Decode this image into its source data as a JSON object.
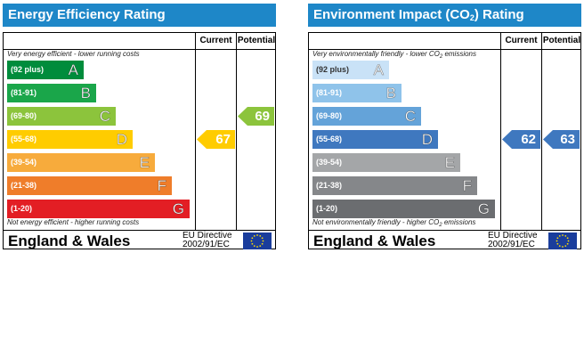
{
  "chart_data": [
    {
      "type": "bar",
      "title": "Energy Efficiency Rating",
      "columns": [
        "Current",
        "Potential"
      ],
      "top_note": "Very energy efficient - lower running costs",
      "bottom_note": "Not energy efficient - higher running costs",
      "bands": [
        {
          "letter": "A",
          "range": "(92 plus)",
          "color": "#008c3c"
        },
        {
          "letter": "B",
          "range": "(81-91)",
          "color": "#1aa64a"
        },
        {
          "letter": "C",
          "range": "(69-80)",
          "color": "#8cc43c"
        },
        {
          "letter": "D",
          "range": "(55-68)",
          "color": "#ffcc00"
        },
        {
          "letter": "E",
          "range": "(39-54)",
          "color": "#f7ab3c"
        },
        {
          "letter": "F",
          "range": "(21-38)",
          "color": "#ef7d2a"
        },
        {
          "letter": "G",
          "range": "(1-20)",
          "color": "#e31e24"
        }
      ],
      "current": {
        "value": 67,
        "band": "D",
        "color": "#ffcc00"
      },
      "potential": {
        "value": 69,
        "band": "C",
        "color": "#8cc43c"
      },
      "country": "England & Wales",
      "directive": [
        "EU Directive",
        "2002/91/EC"
      ]
    },
    {
      "type": "bar",
      "title": "Environment Impact (CO",
      "title_sub": "2",
      "title_end": ") Rating",
      "columns": [
        "Current",
        "Potential"
      ],
      "top_note": "Very environmentally friendly - lower CO",
      "top_note_sub": "2",
      "top_note_end": " emissions",
      "bottom_note": "Not environmentally friendly - higher CO",
      "bottom_note_sub": "2",
      "bottom_note_end": " emissions",
      "bands": [
        {
          "letter": "A",
          "range": "(92 plus)",
          "color": "#c9e2f7"
        },
        {
          "letter": "B",
          "range": "(81-91)",
          "color": "#8fc3ea"
        },
        {
          "letter": "C",
          "range": "(69-80)",
          "color": "#64a3d9"
        },
        {
          "letter": "D",
          "range": "(55-68)",
          "color": "#3f78bf"
        },
        {
          "letter": "E",
          "range": "(39-54)",
          "color": "#a4a6a8"
        },
        {
          "letter": "F",
          "range": "(21-38)",
          "color": "#85878a"
        },
        {
          "letter": "G",
          "range": "(1-20)",
          "color": "#6b6d70"
        }
      ],
      "current": {
        "value": 62,
        "band": "D",
        "color": "#3f78bf"
      },
      "potential": {
        "value": 63,
        "band": "D",
        "color": "#3f78bf"
      },
      "country": "England & Wales",
      "directive": [
        "EU Directive",
        "2002/91/EC"
      ]
    }
  ]
}
